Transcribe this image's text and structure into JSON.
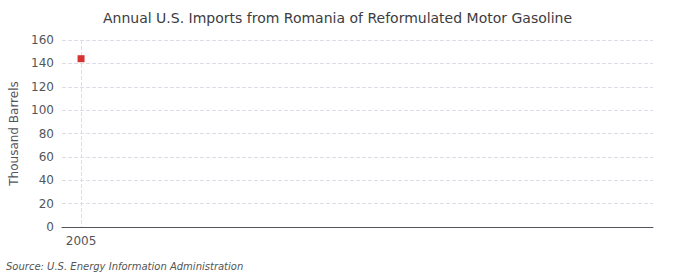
{
  "chart_data": {
    "type": "scatter",
    "title": "Annual U.S. Imports from Romania of Reformulated Motor Gasoline",
    "ylabel": "Thousand Barrels",
    "annotation": "Source: U.S. Energy Information Administration",
    "x": [
      2005
    ],
    "values": [
      144
    ],
    "color": "#cc0000",
    "marker": "square",
    "xlim": [
      2004.4,
      2023
    ],
    "xticks": [
      2005
    ],
    "ylim": [
      0,
      160
    ],
    "yticks": [
      0,
      20,
      40,
      60,
      80,
      100,
      120,
      140,
      160
    ],
    "grid": true
  }
}
